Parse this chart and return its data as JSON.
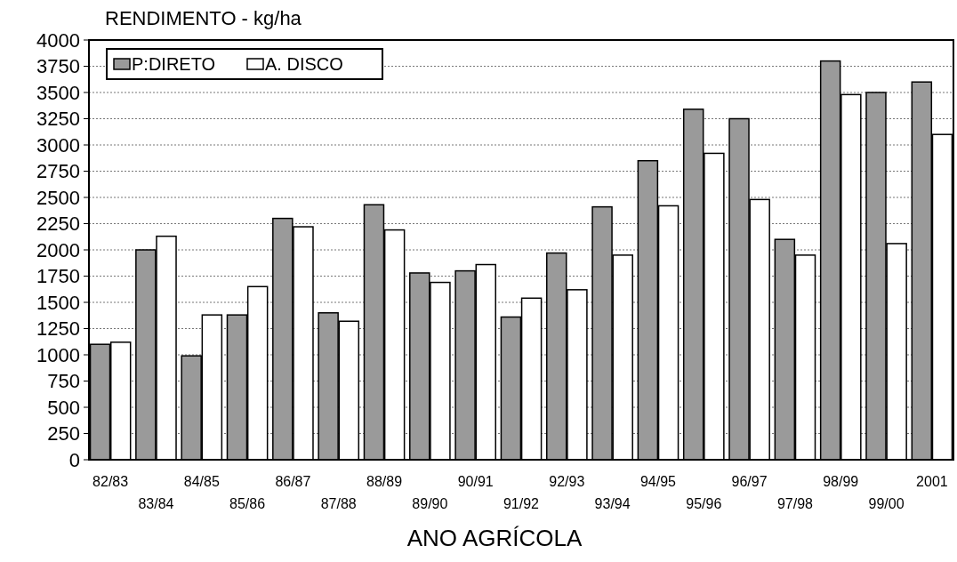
{
  "chart_data": {
    "type": "bar",
    "title": "RENDIMENTO - kg/ha",
    "xlabel": "ANO AGRÍCOLA",
    "categories": [
      "82/83",
      "83/84",
      "84/85",
      "85/86",
      "86/87",
      "87/88",
      "88/89",
      "89/90",
      "90/91",
      "91/92",
      "92/93",
      "93/94",
      "94/95",
      "95/96",
      "96/97",
      "97/98",
      "98/99",
      "99/00",
      "2001"
    ],
    "series": [
      {
        "name": "P:DIRETO",
        "color": "#9a9a9a",
        "values": [
          1100,
          2000,
          990,
          1380,
          2300,
          1400,
          2430,
          1780,
          1800,
          1360,
          1970,
          2410,
          2850,
          3340,
          3250,
          2100,
          3800,
          3500,
          3600
        ]
      },
      {
        "name": "A. DISCO",
        "color": "#ffffff",
        "values": [
          1120,
          2130,
          1380,
          1650,
          2220,
          1320,
          2190,
          1690,
          1860,
          1540,
          1620,
          1950,
          2420,
          2920,
          2480,
          1950,
          3480,
          2060,
          3100
        ]
      }
    ],
    "ylim": [
      0,
      4000
    ],
    "yticks": [
      0,
      250,
      500,
      750,
      1000,
      1250,
      1500,
      1750,
      2000,
      2250,
      2500,
      2750,
      3000,
      3250,
      3500,
      3750,
      4000
    ],
    "grid": "y",
    "legend": "top left"
  }
}
